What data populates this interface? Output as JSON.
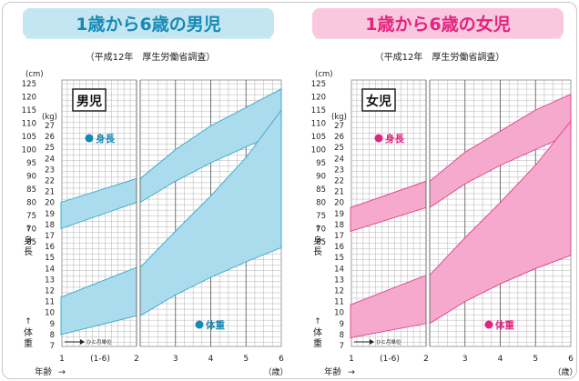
{
  "survey_note": "（平成12年　厚生労働省調査）",
  "chart_data": [
    {
      "type": "area",
      "title": "1歳から6歳の男児",
      "panel_label": "男児",
      "xlabel": "年齢",
      "x_unit": "（歳）",
      "x_ticks": [
        "1",
        "(1-6)",
        "2",
        "3",
        "4",
        "5",
        "6"
      ],
      "x_note": "ひと月単位",
      "height_unit": "(cm)",
      "height_ticks": [
        125,
        120,
        115,
        110,
        105,
        100,
        95,
        90,
        85,
        80,
        75,
        70,
        65
      ],
      "height_axis_label": "身長",
      "weight_unit": "(kg)",
      "weight_ticks": [
        27,
        26,
        25,
        24,
        23,
        22,
        21,
        20,
        19,
        18,
        17,
        16,
        15,
        14,
        13,
        12,
        11,
        10,
        9,
        8,
        7
      ],
      "weight_axis_label": "体重",
      "xlim": [
        1,
        6
      ],
      "series": [
        {
          "name": "身長",
          "axis": "height",
          "x": [
            1,
            2,
            2,
            3,
            4,
            5,
            6
          ],
          "lower": [
            70,
            80,
            80,
            88,
            95,
            101,
            107
          ],
          "upper": [
            80,
            89,
            89,
            100,
            109,
            116,
            123
          ]
        },
        {
          "name": "体重",
          "axis": "weight",
          "x": [
            1,
            2,
            2,
            3,
            4,
            5,
            6
          ],
          "lower": [
            8,
            9.7,
            9.7,
            11.6,
            13.2,
            14.6,
            15.9
          ],
          "upper": [
            11.4,
            14.1,
            14.1,
            17.4,
            20.6,
            24.1,
            28.4
          ]
        }
      ],
      "colors": {
        "band": "#aadced",
        "band_line": "#3aa7c8",
        "label": "#1589b5",
        "header_bg": "#c4e6f2",
        "header_text": "#1589b5"
      }
    },
    {
      "type": "area",
      "title": "1歳から6歳の女児",
      "panel_label": "女児",
      "xlabel": "年齢",
      "x_unit": "（歳）",
      "x_ticks": [
        "1",
        "(1-6)",
        "2",
        "3",
        "4",
        "5",
        "6"
      ],
      "x_note": "ひと月単位",
      "height_unit": "(cm)",
      "height_ticks": [
        125,
        120,
        115,
        110,
        105,
        100,
        95,
        90,
        85,
        80,
        75,
        70,
        65
      ],
      "height_axis_label": "身長",
      "weight_unit": "(kg)",
      "weight_ticks": [
        27,
        26,
        25,
        24,
        23,
        22,
        21,
        20,
        19,
        18,
        17,
        16,
        15,
        14,
        13,
        12,
        11,
        10,
        9,
        8,
        7
      ],
      "weight_axis_label": "体重",
      "xlim": [
        1,
        6
      ],
      "series": [
        {
          "name": "身長",
          "axis": "height",
          "x": [
            1,
            2,
            2,
            3,
            4,
            5,
            6
          ],
          "lower": [
            69,
            78,
            78,
            87,
            94,
            100,
            106
          ],
          "upper": [
            78,
            88,
            88,
            99,
            107,
            115,
            121
          ]
        },
        {
          "name": "体重",
          "axis": "weight",
          "x": [
            1,
            2,
            2,
            3,
            4,
            5,
            6
          ],
          "lower": [
            7.7,
            9,
            9,
            11,
            12.6,
            14,
            15.2
          ],
          "upper": [
            10.7,
            13.4,
            13.4,
            16.8,
            20,
            23.4,
            27.4
          ]
        }
      ],
      "colors": {
        "band": "#f5a9cc",
        "band_line": "#e1408a",
        "label": "#e3237f",
        "header_bg": "#f9c8de",
        "header_text": "#e3237f"
      }
    }
  ]
}
